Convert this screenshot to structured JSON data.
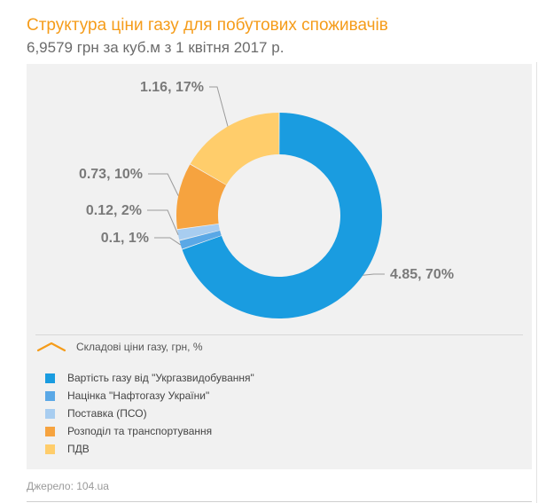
{
  "header": {
    "title": "Структура ціни газу для побутових споживачів",
    "subtitle": "6,9579 грн за куб.м з 1 квітня 2017 р."
  },
  "legend": {
    "title": "Складові ціни газу, грн, %",
    "placement": "bottom"
  },
  "source": "Джерело: 104.ua",
  "chart_data": {
    "type": "pie",
    "donut": true,
    "series": [
      {
        "name": "Складові ціни газу, грн, %",
        "slices": [
          {
            "label": "Вартість газу від \"Укргазвидобування\"",
            "value": 4.85,
            "percent": 70,
            "data_label": "4.85, 70%",
            "color": "#1a9ce0"
          },
          {
            "label": "Націнка \"Нафтогазу України\"",
            "value": 0.1,
            "percent": 1,
            "data_label": "0.1, 1%",
            "color": "#5aa8e6"
          },
          {
            "label": "Поставка (ПСО)",
            "value": 0.12,
            "percent": 2,
            "data_label": "0.12, 2%",
            "color": "#a8cdf0"
          },
          {
            "label": "Розподіл та транспортування",
            "value": 0.73,
            "percent": 10,
            "data_label": "0.73, 10%",
            "color": "#f6a33f"
          },
          {
            "label": "ПДВ",
            "value": 1.16,
            "percent": 17,
            "data_label": "1.16, 17%",
            "color": "#ffcd6b"
          }
        ]
      }
    ]
  },
  "colors": {
    "accent": "#f59c1a",
    "panel_bg": "#f1f1f1"
  }
}
